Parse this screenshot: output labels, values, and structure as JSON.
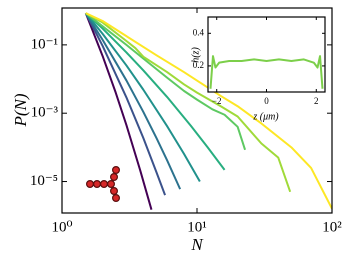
{
  "chart_data": [
    {
      "type": "line",
      "xlabel": "N",
      "ylabel": "P(N)",
      "xscale": "log",
      "yscale": "log",
      "xlim": [
        1,
        100
      ],
      "ylim": [
        1.2e-06,
        1.2
      ],
      "xticks": [
        {
          "value": 1,
          "label": "10⁰"
        },
        {
          "value": 10,
          "label": "10¹"
        },
        {
          "value": 100,
          "label": "10²"
        }
      ],
      "yticks": [
        {
          "value": 0.1,
          "label": "10⁻¹"
        },
        {
          "value": 0.001,
          "label": "10⁻³"
        },
        {
          "value": 1e-05,
          "label": "10⁻⁵"
        }
      ],
      "series": [
        {
          "color": "#440154",
          "x": [
            1.5,
            2,
            2.5,
            3,
            3.8,
            4.6
          ],
          "values": [
            0.85,
            0.047,
            0.004,
            0.00045,
            2.1e-05,
            1.5e-06
          ]
        },
        {
          "color": "#3b528b",
          "x": [
            1.5,
            2,
            3,
            4,
            5,
            5.8
          ],
          "values": [
            0.85,
            0.093,
            0.0029,
            0.00019,
            1.9e-05,
            4e-06
          ]
        },
        {
          "color": "#2c728e",
          "x": [
            1.5,
            2,
            3,
            4,
            5,
            6,
            7.5
          ],
          "values": [
            0.85,
            0.14,
            0.0091,
            0.0011,
            0.00019,
            4.2e-05,
            6e-06
          ]
        },
        {
          "color": "#21918c",
          "x": [
            1.5,
            2,
            3,
            4,
            6,
            8,
            10.5
          ],
          "values": [
            0.85,
            0.21,
            0.025,
            0.0049,
            0.00042,
            6.5e-05,
            1e-05
          ]
        },
        {
          "color": "#28ae80",
          "x": [
            1.5,
            2,
            3,
            4,
            6,
            9,
            12,
            16
          ],
          "values": [
            0.85,
            0.3,
            0.06,
            0.018,
            0.003,
            0.00043,
            0.0001,
            2.2e-05
          ]
        },
        {
          "color": "#5ec962",
          "x": [
            1.5,
            2,
            3,
            4,
            6,
            8,
            10,
            13,
            16,
            20,
            22.7
          ],
          "values": [
            0.85,
            0.35,
            0.1,
            0.04,
            0.011,
            0.0045,
            0.0025,
            0.0013,
            0.0009,
            0.0004,
            8.5e-05
          ]
        },
        {
          "color": "#a0da39",
          "x": [
            1.5,
            2,
            3,
            3.5,
            4,
            6,
            8,
            10,
            15,
            20,
            30,
            40,
            49
          ],
          "values": [
            0.85,
            0.45,
            0.13,
            0.08,
            0.045,
            0.016,
            0.007,
            0.004,
            0.0016,
            0.0008,
            0.00013,
            5e-05,
            5e-06
          ]
        },
        {
          "color": "#fde725",
          "x": [
            1.5,
            2,
            3,
            5,
            8,
            10,
            15,
            20,
            30,
            50,
            70,
            100
          ],
          "values": [
            0.85,
            0.5,
            0.18,
            0.05,
            0.016,
            0.009,
            0.0032,
            0.0016,
            0.0005,
            0.0001,
            2.5e-05,
            1.6e-06
          ]
        }
      ]
    },
    {
      "type": "line",
      "xlabel": "z (μm)",
      "ylabel": "h(z)",
      "xlim": [
        -2.35,
        2.35
      ],
      "ylim": [
        0.04,
        0.5
      ],
      "xticks": [
        {
          "value": -2,
          "label": "−2"
        },
        0,
        2
      ],
      "yticks": [
        0.2,
        0.4
      ],
      "series": [
        {
          "color": "#7ccf4a",
          "x": [
            -2.25,
            -2.15,
            -2.05,
            -1.9,
            -1.5,
            -1,
            -0.5,
            0,
            0.5,
            1,
            1.5,
            1.9,
            2.05,
            2.15,
            2.25
          ],
          "values": [
            0.06,
            0.26,
            0.19,
            0.22,
            0.23,
            0.23,
            0.24,
            0.23,
            0.24,
            0.23,
            0.24,
            0.22,
            0.19,
            0.26,
            0.06
          ]
        }
      ]
    }
  ]
}
